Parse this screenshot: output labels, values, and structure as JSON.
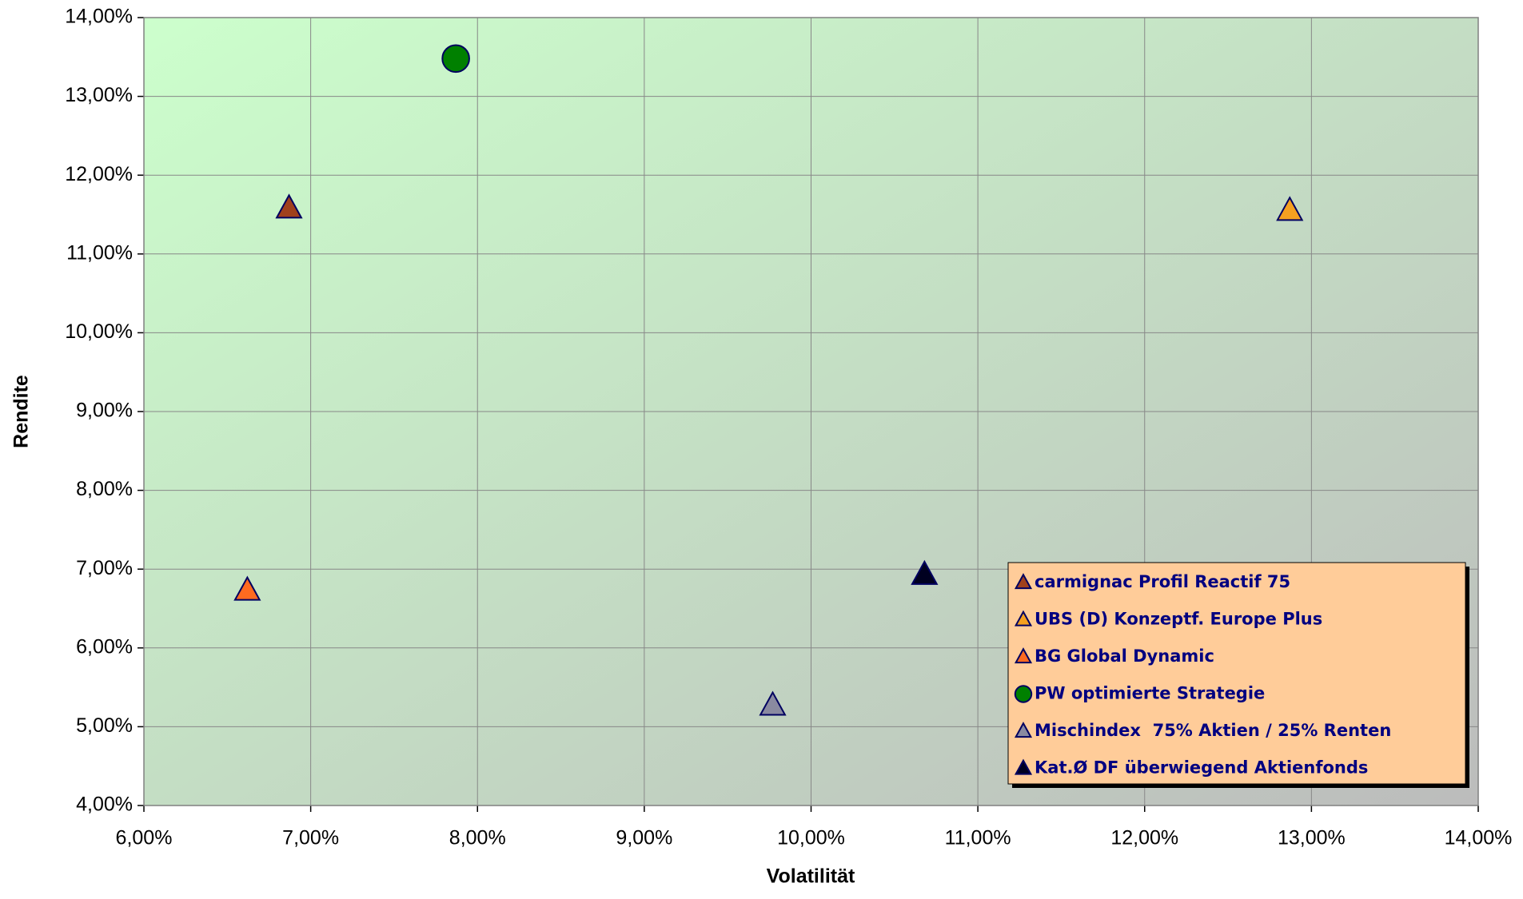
{
  "chart_data": {
    "type": "scatter",
    "xlabel": "Volatilität",
    "ylabel": "Rendite",
    "xlim": [
      6,
      14
    ],
    "ylim": [
      4,
      14
    ],
    "xticks": [
      {
        "value": 6,
        "label": "6,00%"
      },
      {
        "value": 7,
        "label": "7,00%"
      },
      {
        "value": 8,
        "label": "8,00%"
      },
      {
        "value": 9,
        "label": "9,00%"
      },
      {
        "value": 10,
        "label": "10,00%"
      },
      {
        "value": 11,
        "label": "11,00%"
      },
      {
        "value": 12,
        "label": "12,00%"
      },
      {
        "value": 13,
        "label": "13,00%"
      },
      {
        "value": 14,
        "label": "14,00%"
      }
    ],
    "yticks": [
      {
        "value": 4,
        "label": "4,00%"
      },
      {
        "value": 5,
        "label": "5,00%"
      },
      {
        "value": 6,
        "label": "6,00%"
      },
      {
        "value": 7,
        "label": "7,00%"
      },
      {
        "value": 8,
        "label": "8,00%"
      },
      {
        "value": 9,
        "label": "9,00%"
      },
      {
        "value": 10,
        "label": "10,00%"
      },
      {
        "value": 11,
        "label": "11,00%"
      },
      {
        "value": 12,
        "label": "12,00%"
      },
      {
        "value": 13,
        "label": "13,00%"
      },
      {
        "value": 14,
        "label": "14,00%"
      }
    ],
    "grid": true,
    "legend": "lower right",
    "series": [
      {
        "name": "carmignac Profil Reactif 75",
        "color": "#a0401c",
        "marker": "triangle",
        "x": [
          6.87
        ],
        "values": [
          11.58
        ]
      },
      {
        "name": "UBS (D) Konzeptf. Europe Plus",
        "color": "#f5a020",
        "marker": "triangle",
        "x": [
          12.87
        ],
        "values": [
          11.55
        ]
      },
      {
        "name": "BG Global Dynamic",
        "color": "#ff6a20",
        "marker": "triangle",
        "x": [
          6.62
        ],
        "values": [
          6.73
        ]
      },
      {
        "name": "PW optimierte Strategie",
        "color": "#008000",
        "marker": "circle",
        "x": [
          7.87
        ],
        "values": [
          13.48
        ]
      },
      {
        "name": "Mischindex  75% Aktien / 25% Renten",
        "color": "#8a8aa0",
        "marker": "triangle",
        "x": [
          9.77
        ],
        "values": [
          5.27
        ]
      },
      {
        "name": "Kat.Ø DF überwiegend Aktienfonds",
        "color": "#000020",
        "marker": "triangle",
        "x": [
          10.68
        ],
        "values": [
          6.93
        ]
      }
    ]
  }
}
